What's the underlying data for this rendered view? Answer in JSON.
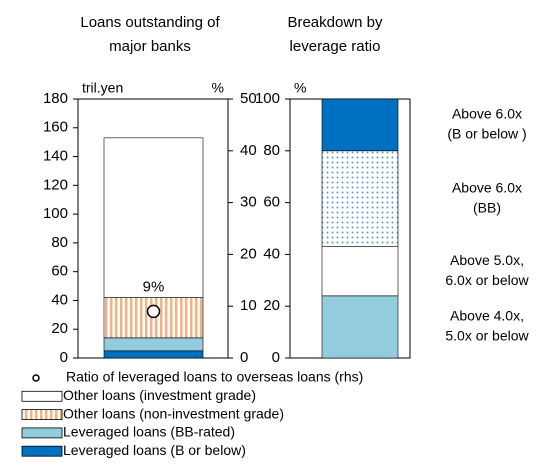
{
  "chart_data": [
    {
      "type": "bar",
      "stacked": true,
      "subtitle": [
        "Loans outstanding of",
        "major banks"
      ],
      "y_label": "tril.yen",
      "y2_label": "%",
      "ylim": [
        0,
        180
      ],
      "yticks": [
        0,
        20,
        40,
        60,
        80,
        100,
        120,
        140,
        160,
        180
      ],
      "y2lim": [
        0,
        50
      ],
      "y2ticks": [
        0,
        10,
        20,
        30,
        40,
        50
      ],
      "series": [
        {
          "name": "Leveraged loans (B or below)",
          "color": "#0070c0",
          "values": [
            5
          ]
        },
        {
          "name": "Leveraged loans (BB-rated)",
          "color": "#93cddd",
          "values": [
            9
          ]
        },
        {
          "name": "Other loans (non-investment grade)",
          "color": "#f4b183",
          "pattern": "stripes",
          "values": [
            28
          ]
        },
        {
          "name": "Other loans (investment grade)",
          "color": "#ffffff",
          "values": [
            111
          ]
        },
        {
          "name": "Ratio of leveraged loans to overseas loans (rhs)",
          "type": "scatter",
          "axis": "y2",
          "color": "#ffffff",
          "values": [
            9
          ],
          "value_labels": [
            "9%"
          ]
        }
      ]
    },
    {
      "type": "bar",
      "stacked": true,
      "subtitle": [
        "Breakdown by",
        "leverage ratio"
      ],
      "y_label": "%",
      "ylim": [
        0,
        100
      ],
      "yticks": [
        0,
        20,
        40,
        60,
        80,
        100
      ],
      "series": [
        {
          "name": [
            "Above 4.0x,",
            "5.0x or below"
          ],
          "color": "#93cddd",
          "values": [
            24
          ]
        },
        {
          "name": [
            "Above 5.0x,",
            "6.0x or below"
          ],
          "color": "#ffffff",
          "values": [
            19
          ]
        },
        {
          "name": [
            "Above 6.0x",
            "(BB)"
          ],
          "color": "#5b9bd5",
          "pattern": "dots",
          "values": [
            37
          ]
        },
        {
          "name": [
            "Above 6.0x",
            "(B or below )"
          ],
          "color": "#0070c0",
          "values": [
            20
          ]
        }
      ]
    }
  ]
}
